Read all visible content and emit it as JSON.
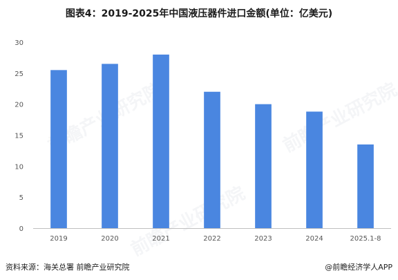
{
  "header": {
    "title": "图表4：2019-2025年中国液压器件进口金额(单位：亿美元)"
  },
  "footer": {
    "source": "资料来源：海关总署 前瞻产业研究院",
    "brand": "@前瞻经济学人APP"
  },
  "watermark": {
    "text": "前瞻产业研究院"
  },
  "colors": {
    "bar": "#4A86E0",
    "axis": "#bfbfbf"
  },
  "chart_data": {
    "type": "bar",
    "title": "图表4：2019-2025年中国液压器件进口金额(单位：亿美元)",
    "xlabel": "",
    "ylabel": "",
    "categories": [
      "2019",
      "2020",
      "2021",
      "2022",
      "2023",
      "2024",
      "2025.1-8"
    ],
    "values": [
      25.5,
      26.5,
      28.0,
      22.0,
      20.0,
      18.8,
      13.5
    ],
    "ylim": [
      0,
      30
    ],
    "yticks": [
      0,
      5,
      10,
      15,
      20,
      25,
      30
    ],
    "grid": false,
    "legend": "none"
  }
}
